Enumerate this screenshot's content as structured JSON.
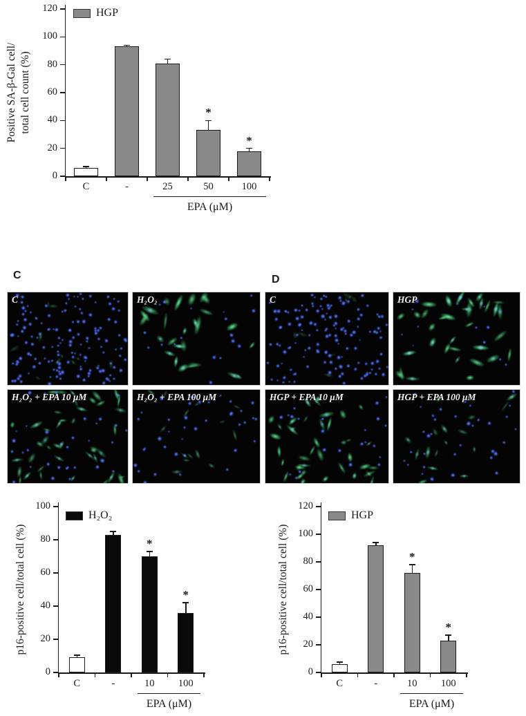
{
  "figure": {
    "background": "#ffffff"
  },
  "colors": {
    "axis": "#1a1a1a",
    "gray_bar": "#8a8a8a",
    "black_bar": "#0a0a0a",
    "white_bar": "#ffffff",
    "micrograph_bg": "#040404",
    "blue_stain": "#3c5ae0",
    "green_stain": "#49d47e"
  },
  "chart_data": [
    {
      "type": "bar",
      "id": "sa_bgal_hgp",
      "legend": {
        "label": "HGP",
        "fill": "#8a8a8a",
        "position": "top-left"
      },
      "ylabel_lines": [
        "Positive SA-β-Gal cell/",
        "total cell count (%)"
      ],
      "xlabel": "",
      "ylim": [
        0,
        120
      ],
      "ytick_step": 20,
      "grid": false,
      "categories": [
        "C",
        "-",
        "25",
        "50",
        "100"
      ],
      "values": [
        6,
        93,
        81,
        33,
        18
      ],
      "errors": [
        1,
        1,
        3,
        7,
        2
      ],
      "sig_stars": [
        false,
        false,
        false,
        true,
        true
      ],
      "bar_fills": [
        "#ffffff",
        "#8a8a8a",
        "#8a8a8a",
        "#8a8a8a",
        "#8a8a8a"
      ],
      "group_label": {
        "text": "EPA (μM)",
        "from_index": 2,
        "to_index": 4
      }
    },
    {
      "type": "bar",
      "id": "p16_h2o2",
      "legend": {
        "label": "H₂O₂",
        "fill": "#0a0a0a",
        "position": "top-left"
      },
      "ylabel_lines": [
        "p16-positive cell/total cell (%)"
      ],
      "xlabel": "",
      "ylim": [
        0,
        100
      ],
      "ytick_step": 20,
      "grid": false,
      "categories": [
        "C",
        "-",
        "10",
        "100"
      ],
      "values": [
        9,
        83,
        70,
        36
      ],
      "errors": [
        1.5,
        2,
        3,
        6
      ],
      "sig_stars": [
        false,
        false,
        true,
        true
      ],
      "bar_fills": [
        "#ffffff",
        "#0a0a0a",
        "#0a0a0a",
        "#0a0a0a"
      ],
      "group_label": {
        "text": "EPA (μM)",
        "from_index": 2,
        "to_index": 3
      }
    },
    {
      "type": "bar",
      "id": "p16_hgp",
      "legend": {
        "label": "HGP",
        "fill": "#8a8a8a",
        "position": "top-left"
      },
      "ylabel_lines": [
        "p16-positive cell/total cell (%)"
      ],
      "xlabel": "",
      "ylim": [
        0,
        120
      ],
      "ytick_step": 20,
      "grid": false,
      "categories": [
        "C",
        "-",
        "10",
        "100"
      ],
      "values": [
        6,
        92,
        72,
        23
      ],
      "errors": [
        1.5,
        2,
        6,
        4
      ],
      "sig_stars": [
        false,
        false,
        true,
        true
      ],
      "bar_fills": [
        "#ffffff",
        "#8a8a8a",
        "#8a8a8a",
        "#8a8a8a"
      ],
      "group_label": {
        "text": "EPA (μM)",
        "from_index": 2,
        "to_index": 3
      }
    }
  ],
  "panels": [
    {
      "letter": "C",
      "images": [
        {
          "label": "C",
          "stain": "blue-nuclei-dense",
          "blue": 150,
          "green": 10,
          "green_alpha": 0.3,
          "green_size": 0.9
        },
        {
          "label": "H₂O₂",
          "stain": "green-cells-bright",
          "blue": 18,
          "green": 26,
          "green_alpha": 0.95,
          "green_size": 1.35
        },
        {
          "label": "H₂O₂ + EPA 10 μM",
          "stain": "green-cells-medium",
          "blue": 34,
          "green": 42,
          "green_alpha": 0.8,
          "green_size": 1.0
        },
        {
          "label": "H₂O₂ + EPA 100 μM",
          "stain": "blue-sparse-faint-green",
          "blue": 40,
          "green": 14,
          "green_alpha": 0.55,
          "green_size": 0.8
        }
      ]
    },
    {
      "letter": "D",
      "images": [
        {
          "label": "C",
          "stain": "blue-nuclei-dense",
          "blue": 140,
          "green": 8,
          "green_alpha": 0.3,
          "green_size": 0.9
        },
        {
          "label": "HGP",
          "stain": "green-cells-bright",
          "blue": 12,
          "green": 34,
          "green_alpha": 1.0,
          "green_size": 1.3
        },
        {
          "label": "HGP + EPA 10 μM",
          "stain": "green-cells-medium",
          "blue": 24,
          "green": 40,
          "green_alpha": 0.9,
          "green_size": 1.1
        },
        {
          "label": "HGP + EPA 100 μM",
          "stain": "blue-sparse-faint-green",
          "blue": 34,
          "green": 16,
          "green_alpha": 0.7,
          "green_size": 0.95
        }
      ]
    }
  ]
}
